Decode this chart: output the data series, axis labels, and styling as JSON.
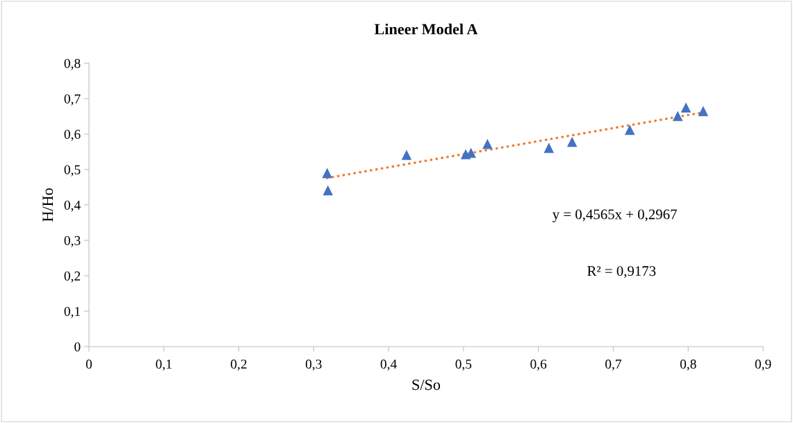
{
  "chart_data": {
    "type": "scatter",
    "title": "Lineer Model A",
    "xlabel": "S/So",
    "ylabel": "H/Ho",
    "series": [
      {
        "color": "#4472c4",
        "marker": "triangle",
        "x": [
          0.318,
          0.319,
          0.424,
          0.503,
          0.51,
          0.532,
          0.614,
          0.645,
          0.722,
          0.786,
          0.797,
          0.82
        ],
        "values": [
          0.49,
          0.441,
          0.541,
          0.543,
          0.547,
          0.572,
          0.561,
          0.578,
          0.612,
          0.651,
          0.675,
          0.665
        ]
      },
      {
        "type": "line",
        "color": "#ed7d31",
        "line_style": "dotted",
        "marker": "none",
        "x": [
          0.318,
          0.82
        ],
        "values": [
          0.476,
          0.661
        ]
      }
    ],
    "xlim": [
      0,
      0.9
    ],
    "ylim": [
      0,
      0.8
    ],
    "xticks": [
      0,
      {
        "value": 0.1,
        "label": "0,1"
      },
      {
        "value": 0.2,
        "label": "0,2"
      },
      {
        "value": 0.3,
        "label": "0,3"
      },
      {
        "value": 0.4,
        "label": "0,4"
      },
      {
        "value": 0.5,
        "label": "0,5"
      },
      {
        "value": 0.6,
        "label": "0,6"
      },
      {
        "value": 0.7,
        "label": "0,7"
      },
      {
        "value": 0.8,
        "label": "0,8"
      },
      {
        "value": 0.9,
        "label": "0,9"
      }
    ],
    "yticks": [
      0,
      {
        "value": 0.1,
        "label": "0,1"
      },
      {
        "value": 0.2,
        "label": "0,2"
      },
      {
        "value": 0.3,
        "label": "0,3"
      },
      {
        "value": 0.4,
        "label": "0,4"
      },
      {
        "value": 0.5,
        "label": "0,5"
      },
      {
        "value": 0.6,
        "label": "0,6"
      },
      {
        "value": 0.7,
        "label": "0,7"
      },
      {
        "value": 0.8,
        "label": "0,8"
      }
    ],
    "grid": false,
    "legend": false,
    "annotations": [
      "y = 0,4565x + 0,2967",
      "R² = 0,9173"
    ]
  }
}
